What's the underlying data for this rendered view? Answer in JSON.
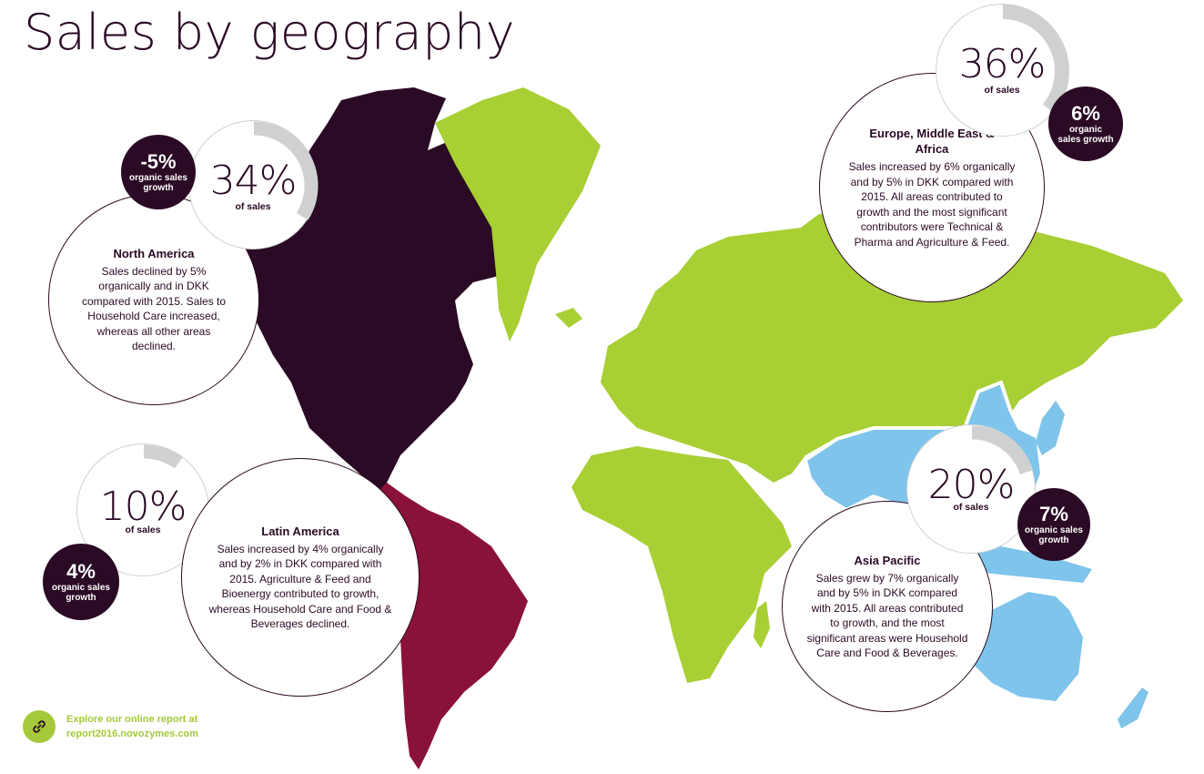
{
  "title": "Sales by geography",
  "colors": {
    "north_america": "#2a0a24",
    "latin_america": "#8a1238",
    "emea": "#a8cf33",
    "asia_pacific": "#7fc4ea",
    "ring_track": "#cfd1d0",
    "badge": "#2a0a24"
  },
  "regions": {
    "north_america": {
      "name": "North America",
      "share": "34%",
      "share_fraction": 0.34,
      "share_label": "of sales",
      "growth": "-5%",
      "growth_label": "organic sales growth",
      "text": "Sales declined by 5% organically and in DKK compared with 2015. Sales to Household Care increased, whereas all other areas declined."
    },
    "latin_america": {
      "name": "Latin America",
      "share": "10%",
      "share_fraction": 0.1,
      "share_label": "of sales",
      "growth": "4%",
      "growth_label": "organic sales growth",
      "text": "Sales increased by 4% organically and by 2% in DKK compared with 2015. Agriculture & Feed and Bioenergy contributed to growth, whereas Household Care and Food & Beverages declined."
    },
    "emea": {
      "name": "Europe, Middle East & Africa",
      "share": "36%",
      "share_fraction": 0.36,
      "share_label": "of sales",
      "growth": "6%",
      "growth_label": "organic sales growth",
      "text": "Sales increased by 6% organically and by 5% in DKK compared with 2015. All areas contributed to growth and the most significant contributors were Technical & Pharma and Agriculture & Feed."
    },
    "asia_pacific": {
      "name": "Asia Pacific",
      "share": "20%",
      "share_fraction": 0.2,
      "share_label": "of sales",
      "growth": "7%",
      "growth_label": "organic sales growth",
      "text": "Sales grew by 7% organically and by 5% in DKK compared with 2015. All areas contributed to growth, and the most significant areas were Household Care and Food & Beverages."
    }
  },
  "footer": {
    "icon": "link-icon",
    "line1": "Explore our online report at",
    "line2": "report2016.novozymes.com"
  }
}
